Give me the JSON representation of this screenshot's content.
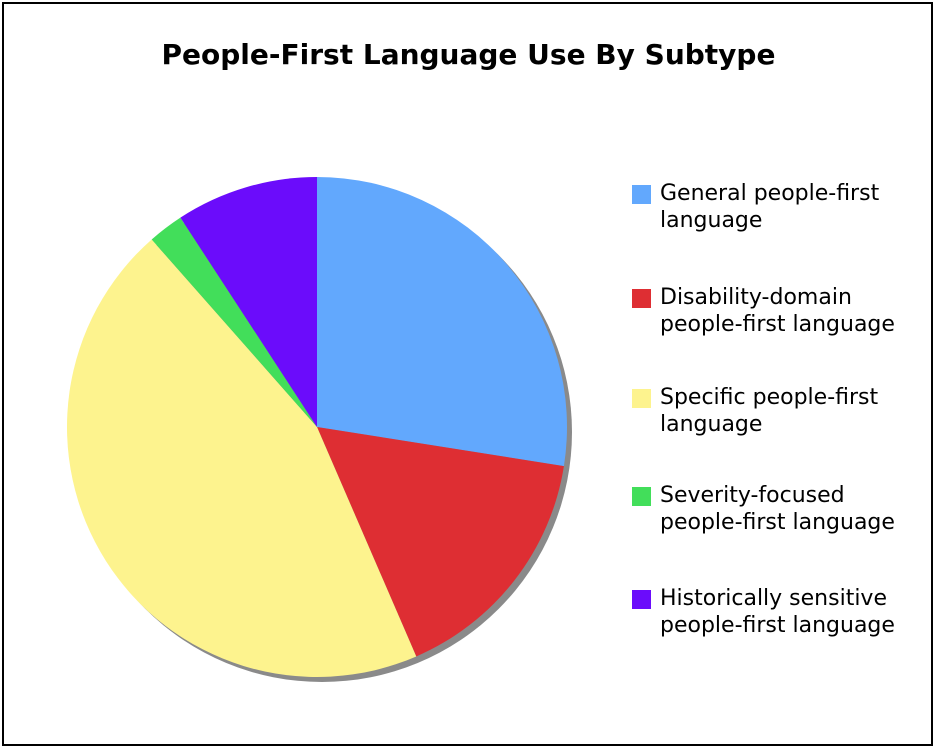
{
  "chart_data": {
    "type": "pie",
    "title": "People-First Language Use By Subtype",
    "series": [
      {
        "name": "",
        "categories": [
          "General people-first language",
          "Disability-domain people-first language",
          "Specific people-first language",
          "Severity-focused people-first language",
          "Historically sensitive people-first language"
        ],
        "values": [
          27.5,
          16.0,
          45.0,
          2.3,
          9.2
        ]
      }
    ],
    "colors": [
      "#62a8fd",
      "#de2e33",
      "#fdf38e",
      "#42de5a",
      "#6b0cfb"
    ],
    "legend": {
      "position": "right",
      "items": [
        {
          "label": "General people-first language",
          "color": "#62a8fd"
        },
        {
          "label": "Disability-domain people-first language",
          "color": "#de2e33"
        },
        {
          "label": "Specific people-first language",
          "color": "#fdf38e"
        },
        {
          "label": "Severity-focused people-first language",
          "color": "#42de5a"
        },
        {
          "label": "Historically sensitive people-first language",
          "color": "#6b0cfb"
        }
      ]
    }
  }
}
